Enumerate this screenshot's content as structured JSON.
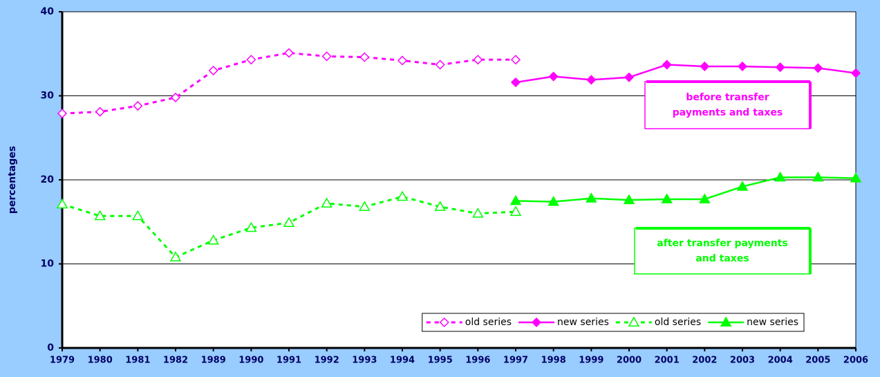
{
  "chart_data": {
    "type": "line",
    "ylabel": "percentages",
    "categories": [
      "1979",
      "1980",
      "1981",
      "1982",
      "1989",
      "1990",
      "1991",
      "1992",
      "1993",
      "1994",
      "1995",
      "1996",
      "1997",
      "1998",
      "1999",
      "2000",
      "2001",
      "2002",
      "2003",
      "2004",
      "2005",
      "2006"
    ],
    "ylim": [
      0,
      40
    ],
    "yticks": [
      0,
      10,
      20,
      30,
      40
    ],
    "grid": true,
    "legend": "lower right",
    "series": [
      {
        "name": "old series",
        "color": "#ff00ff",
        "style": "dashed",
        "marker": "diamond",
        "filled": false,
        "values": [
          27.9,
          28.1,
          28.8,
          29.8,
          33.0,
          34.3,
          35.1,
          34.7,
          34.6,
          34.2,
          33.7,
          34.3,
          34.3,
          null,
          null,
          null,
          null,
          null,
          null,
          null,
          null,
          null
        ]
      },
      {
        "name": "new series",
        "color": "#ff00ff",
        "style": "solid",
        "marker": "diamond",
        "filled": true,
        "values": [
          null,
          null,
          null,
          null,
          null,
          null,
          null,
          null,
          null,
          null,
          null,
          null,
          31.6,
          32.3,
          31.9,
          32.2,
          33.7,
          33.5,
          33.5,
          33.4,
          33.3,
          32.7
        ]
      },
      {
        "name": "old series",
        "color": "#00ff00",
        "style": "dashed",
        "marker": "triangle",
        "filled": false,
        "values": [
          17.1,
          15.7,
          15.7,
          10.8,
          12.8,
          14.3,
          14.9,
          17.2,
          16.8,
          18.0,
          16.8,
          16.0,
          16.2,
          null,
          null,
          null,
          null,
          null,
          null,
          null,
          null,
          null
        ]
      },
      {
        "name": "new series",
        "color": "#00ff00",
        "style": "solid",
        "marker": "triangle",
        "filled": true,
        "values": [
          null,
          null,
          null,
          null,
          null,
          null,
          null,
          null,
          null,
          null,
          null,
          null,
          17.5,
          17.4,
          17.8,
          17.6,
          17.7,
          17.7,
          19.2,
          20.3,
          20.3,
          20.2
        ]
      }
    ],
    "annotations": [
      {
        "lines": [
          "before transfer",
          "payments and taxes"
        ],
        "color": "#ff00ff"
      },
      {
        "lines": [
          "after transfer payments",
          "and taxes"
        ],
        "color": "#00ff00"
      }
    ]
  }
}
